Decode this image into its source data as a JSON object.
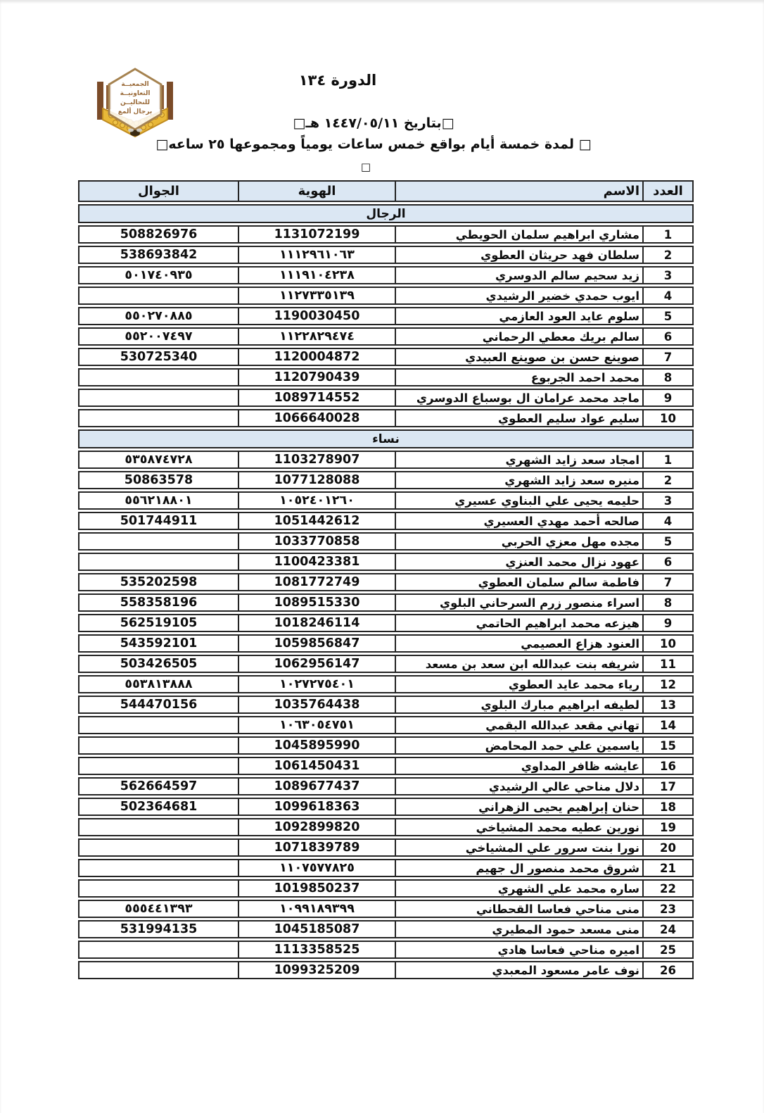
{
  "header": {
    "title": "الدورة ١٣٤",
    "date_line": "□بتاريخ ١٤٤٧/٠٥/١١ هـ□",
    "duration_line": "□ لمدة خمسة أيام بواقع خمس ساعات يومياً ومجموعها ٢٥ ساعه□",
    "box_glyph": "□",
    "logo": {
      "lines": [
        "الجمعيــة",
        "التعاونيــة",
        "للنحاليــن",
        "برجال ألمع"
      ]
    }
  },
  "table": {
    "columns": [
      "العدد",
      "الاسم",
      "الهوية",
      "الجوال"
    ],
    "sections": [
      {
        "label": "الرجال",
        "rows": [
          {
            "num": "1",
            "name": "مشاري ابراهيم سلمان الحويطي",
            "id": "1131072199",
            "mobile": "508826976"
          },
          {
            "num": "2",
            "name": "سلطان فهد حريثان العطوي",
            "id": "١١١٢٩٦١٠٦٣",
            "mobile": "538693842"
          },
          {
            "num": "3",
            "name": "زيد سحيم سالم الدوسري",
            "id": "١١١٩١٠٤٢٣٨",
            "mobile": "٥٠١٧٤٠٩٣٥"
          },
          {
            "num": "4",
            "name": "ايوب حمدي خضير الرشيدي",
            "id": "١١٢٧٣٣٥١٣٩",
            "mobile": ""
          },
          {
            "num": "5",
            "name": "سلوم عايد العود العازمي",
            "id": "1190030450",
            "mobile": "٥٥٠٢٧٠٨٨٥"
          },
          {
            "num": "6",
            "name": "سالم بريك معطي الرحماني",
            "id": "١١٢٢٨٢٩٤٧٤",
            "mobile": "٥٥٢٠٠٧٤٩٧"
          },
          {
            "num": "7",
            "name": "صوينع حسن بن صوينع العبيدي",
            "id": "1120004872",
            "mobile": "530725340"
          },
          {
            "num": "8",
            "name": "محمد احمد الجربوع",
            "id": "1120790439",
            "mobile": ""
          },
          {
            "num": "9",
            "name": "ماجد محمد عرامان ال بوسباع الدوسري",
            "id": "1089714552",
            "mobile": ""
          },
          {
            "num": "10",
            "name": "سليم عواد سليم العطوي",
            "id": "1066640028",
            "mobile": ""
          }
        ]
      },
      {
        "label": "نساء",
        "rows": [
          {
            "num": "1",
            "name": "امجاد سعد زايد الشهري",
            "id": "1103278907",
            "mobile": "٥٣٥٨٧٤٧٢٨"
          },
          {
            "num": "2",
            "name": "منيره سعد زايد الشهري",
            "id": "1077128088",
            "mobile": "50863578"
          },
          {
            "num": "3",
            "name": "حليمه يحيى علي البناوي عسيري",
            "id": "١٠٥٢٤٠١٢٦٠",
            "mobile": "٥٥٦٢١٨٨٠١"
          },
          {
            "num": "4",
            "name": "صالحه أحمد مهدي العسيري",
            "id": "1051442612",
            "mobile": "501744911"
          },
          {
            "num": "5",
            "name": "مجده مهل معزي الحربي",
            "id": "1033770858",
            "mobile": ""
          },
          {
            "num": "6",
            "name": "عهود نزال محمد العنزي",
            "id": "1100423381",
            "mobile": ""
          },
          {
            "num": "7",
            "name": "فاطمة سالم سلمان العطوي",
            "id": "1081772749",
            "mobile": "535202598"
          },
          {
            "num": "8",
            "name": "اسراء منصور زرم السرحاني البلوي",
            "id": "1089515330",
            "mobile": "558358196"
          },
          {
            "num": "9",
            "name": "هيزعه محمد ابراهيم الحاتمي",
            "id": "1018246114",
            "mobile": "562519105"
          },
          {
            "num": "10",
            "name": "العنود هزاع العصيمي",
            "id": "1059856847",
            "mobile": "543592101"
          },
          {
            "num": "11",
            "name": "شريفه بنت عبدالله ابن سعد بن مسعد",
            "id": "1062956147",
            "mobile": "503426505"
          },
          {
            "num": "12",
            "name": "رياء محمد عايد العطوي",
            "id": "١٠٢٧٢٧٥٤٠١",
            "mobile": "٥٥٣٨١٣٨٨٨"
          },
          {
            "num": "13",
            "name": "لطيفه ابراهيم مبارك البلوي",
            "id": "1035764438",
            "mobile": "544470156"
          },
          {
            "num": "14",
            "name": "تهاني مقعد عبدالله البقمي",
            "id": "١٠٦٣٠٥٤٧٥١",
            "mobile": ""
          },
          {
            "num": "15",
            "name": "ياسمين علي حمد المحامض",
            "id": "1045895990",
            "mobile": ""
          },
          {
            "num": "16",
            "name": "عايشه ظافر المداوي",
            "id": "1061450431",
            "mobile": ""
          },
          {
            "num": "17",
            "name": "دلال مناحي عالي الرشيدي",
            "id": "1089677437",
            "mobile": "562664597"
          },
          {
            "num": "18",
            "name": "حنان إبراهيم يحيى الزهراني",
            "id": "1099618363",
            "mobile": "502364681"
          },
          {
            "num": "19",
            "name": "نورين عطيه محمد المشياخي",
            "id": "1092899820",
            "mobile": ""
          },
          {
            "num": "20",
            "name": "نورا بنت سرور علي المشياخي",
            "id": "1071839789",
            "mobile": ""
          },
          {
            "num": "21",
            "name": "شروق محمد منصور ال جهيم",
            "id": "١١٠٧٥٧٧٨٢٥",
            "mobile": ""
          },
          {
            "num": "22",
            "name": "ساره محمد علي الشهري",
            "id": "1019850237",
            "mobile": ""
          },
          {
            "num": "23",
            "name": "منى مناحي فعاسا القحطاني",
            "id": "١٠٩٩١٨٩٣٩٩",
            "mobile": "٥٥٥٤٤١٣٩٣"
          },
          {
            "num": "24",
            "name": "منى مسعد حمود المطيري",
            "id": "1045185087",
            "mobile": "531994135"
          },
          {
            "num": "25",
            "name": "اميره مناحي فعاسا هادي",
            "id": "1113358525",
            "mobile": ""
          },
          {
            "num": "26",
            "name": "نوف عامر مسعود المعبدي",
            "id": "1099325209",
            "mobile": ""
          }
        ]
      }
    ]
  },
  "colors": {
    "header_fill": "#dbe7f3",
    "table_border": "#242424",
    "logo_brown": "#7b4b28",
    "logo_tan": "#a5824f",
    "logo_gold": "#e9b838"
  }
}
